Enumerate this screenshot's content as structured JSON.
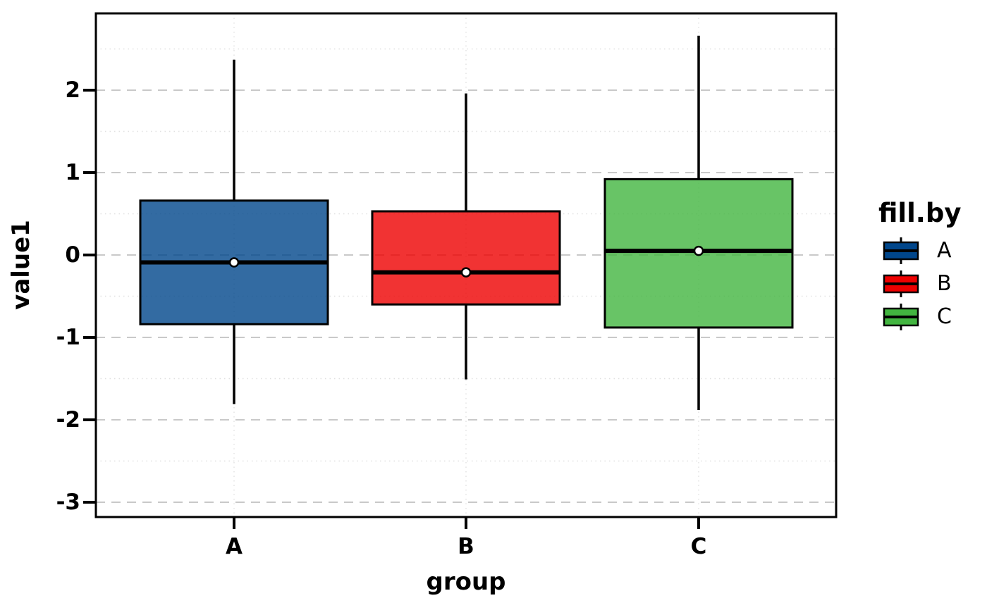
{
  "chart_data": {
    "type": "boxplot",
    "title": "",
    "xlabel": "group",
    "ylabel": "value1",
    "categories": [
      "A",
      "B",
      "C"
    ],
    "y_tick_labels": [
      "2",
      "1",
      "0",
      "-1",
      "-2",
      "-3"
    ],
    "y_tick_values": [
      2,
      1,
      0,
      -1,
      -2,
      -3
    ],
    "y_minor_tick_values": [
      2.5,
      1.5,
      0.5,
      -0.5,
      -1.5,
      -2.5
    ],
    "ylim": [
      -3.18,
      2.93
    ],
    "grid": {
      "horizontal_major": "dashed",
      "horizontal_minor": "dotted",
      "vertical_at_categories": "dotted"
    },
    "legend_position": "right",
    "legend": {
      "title": "fill.by",
      "entries": [
        {
          "label": "A",
          "color": "#00468B"
        },
        {
          "label": "B",
          "color": "#ED0000"
        },
        {
          "label": "C",
          "color": "#42B540"
        }
      ]
    },
    "series": [
      {
        "group": "A",
        "fill": "rgba(0,70,139,0.8)",
        "whisker_low": -1.81,
        "q1": -0.84,
        "median": -0.09,
        "q3": 0.66,
        "whisker_high": 2.37,
        "mean": -0.09
      },
      {
        "group": "B",
        "fill": "rgba(237,0,0,0.8)",
        "whisker_low": -1.51,
        "q1": -0.6,
        "median": -0.21,
        "q3": 0.53,
        "whisker_high": 1.96,
        "mean": -0.21
      },
      {
        "group": "C",
        "fill": "rgba(66,181,64,0.8)",
        "whisker_low": -1.88,
        "q1": -0.88,
        "median": 0.05,
        "q3": 0.92,
        "whisker_high": 2.66,
        "mean": 0.05
      }
    ],
    "style": {
      "box_border_color": "#000000",
      "median_color": "#000000",
      "mean_point_fill": "#ffffff",
      "mean_point_stroke": "#000000",
      "major_grid_color": "#c9c9c9",
      "minor_grid_color": "#e0e0e0",
      "panel_border_color": "#000000",
      "background": "#ffffff"
    }
  }
}
